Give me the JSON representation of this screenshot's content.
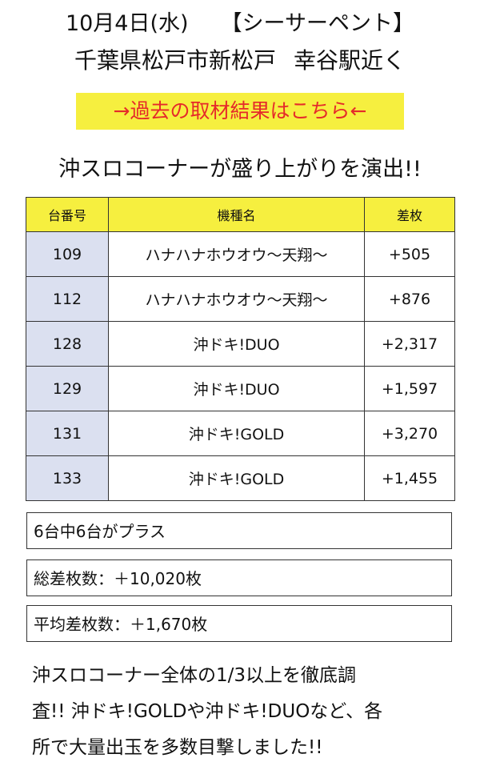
{
  "header": {
    "date": "10月4日(水)",
    "store": "【シーサーペント】",
    "location": "千葉県松戸市新松戸",
    "access": "幸谷駅近く"
  },
  "past_link": {
    "label": "→過去の取材結果はこちら←"
  },
  "headline": "沖スロコーナーが盛り上がりを演出!!",
  "table": {
    "headers": [
      "台番号",
      "機種名",
      "差枚"
    ],
    "rows": [
      {
        "num": "109",
        "machine": "ハナハナホウオウ〜天翔〜",
        "diff": "+505"
      },
      {
        "num": "112",
        "machine": "ハナハナホウオウ〜天翔〜",
        "diff": "+876"
      },
      {
        "num": "128",
        "machine": "沖ドキ!DUO",
        "diff": "+2,317"
      },
      {
        "num": "129",
        "machine": "沖ドキ!DUO",
        "diff": "+1,597"
      },
      {
        "num": "131",
        "machine": "沖ドキ!GOLD",
        "diff": "+3,270"
      },
      {
        "num": "133",
        "machine": "沖ドキ!GOLD",
        "diff": "+1,455"
      }
    ]
  },
  "summary": {
    "plus_count": "6台中6台がプラス",
    "total": "総差枚数：＋10,020枚",
    "average": "平均差枚数：＋1,670枚"
  },
  "paragraph": [
    "沖スロコーナー全体の1/3以上を徹底調",
    "査!! 沖ドキ!GOLDや沖ドキ!DUOなど、各",
    "所で大量出玉を多数目撃しました!!"
  ],
  "colors": {
    "highlight": "#f6ef3f",
    "link_text": "#e52a2a",
    "num_cell": "#dbe0f0"
  }
}
